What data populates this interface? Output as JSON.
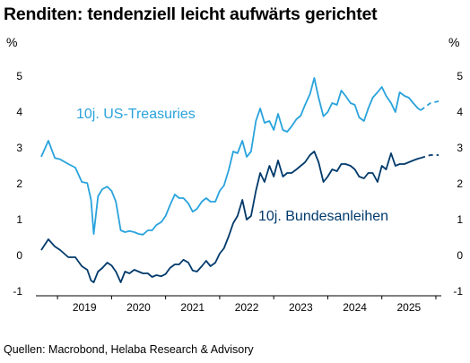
{
  "title": "Renditen: tendenziell leicht aufwärts gerichtet",
  "source": "Quellen: Macrobond, Helaba Research & Advisory",
  "chart_data": {
    "type": "line",
    "unit_left": "%",
    "unit_right": "%",
    "ylim": [
      -1,
      5
    ],
    "y_ticks": [
      "-1",
      "0",
      "1",
      "2",
      "3",
      "4",
      "5"
    ],
    "x_ticks": [
      "2019",
      "2020",
      "2021",
      "2022",
      "2023",
      "2024",
      "2025"
    ],
    "xlim": [
      2018.6,
      2026.1
    ],
    "series": [
      {
        "name": "10j. US-Treasuries",
        "color": "#29a3dc",
        "points": [
          [
            2018.7,
            2.75
          ],
          [
            2018.83,
            3.2
          ],
          [
            2018.95,
            2.72
          ],
          [
            2019.05,
            2.68
          ],
          [
            2019.2,
            2.55
          ],
          [
            2019.33,
            2.45
          ],
          [
            2019.45,
            2.05
          ],
          [
            2019.55,
            2.02
          ],
          [
            2019.62,
            1.55
          ],
          [
            2019.67,
            0.6
          ],
          [
            2019.75,
            1.65
          ],
          [
            2019.83,
            1.85
          ],
          [
            2019.92,
            1.92
          ],
          [
            2020.0,
            1.8
          ],
          [
            2020.08,
            1.5
          ],
          [
            2020.17,
            0.7
          ],
          [
            2020.25,
            0.65
          ],
          [
            2020.33,
            0.68
          ],
          [
            2020.42,
            0.65
          ],
          [
            2020.5,
            0.6
          ],
          [
            2020.58,
            0.58
          ],
          [
            2020.67,
            0.7
          ],
          [
            2020.75,
            0.7
          ],
          [
            2020.83,
            0.85
          ],
          [
            2020.92,
            0.93
          ],
          [
            2021.0,
            1.1
          ],
          [
            2021.08,
            1.4
          ],
          [
            2021.17,
            1.7
          ],
          [
            2021.25,
            1.6
          ],
          [
            2021.33,
            1.6
          ],
          [
            2021.42,
            1.45
          ],
          [
            2021.5,
            1.22
          ],
          [
            2021.58,
            1.3
          ],
          [
            2021.67,
            1.5
          ],
          [
            2021.75,
            1.6
          ],
          [
            2021.83,
            1.5
          ],
          [
            2021.92,
            1.5
          ],
          [
            2022.0,
            1.8
          ],
          [
            2022.08,
            1.95
          ],
          [
            2022.17,
            2.4
          ],
          [
            2022.25,
            2.9
          ],
          [
            2022.33,
            2.85
          ],
          [
            2022.42,
            3.2
          ],
          [
            2022.5,
            2.75
          ],
          [
            2022.58,
            2.9
          ],
          [
            2022.67,
            3.75
          ],
          [
            2022.75,
            4.1
          ],
          [
            2022.83,
            3.7
          ],
          [
            2022.92,
            3.75
          ],
          [
            2023.0,
            3.5
          ],
          [
            2023.08,
            3.95
          ],
          [
            2023.17,
            3.5
          ],
          [
            2023.25,
            3.45
          ],
          [
            2023.33,
            3.6
          ],
          [
            2023.42,
            3.8
          ],
          [
            2023.5,
            3.9
          ],
          [
            2023.58,
            4.2
          ],
          [
            2023.67,
            4.5
          ],
          [
            2023.75,
            4.95
          ],
          [
            2023.83,
            4.4
          ],
          [
            2023.92,
            3.88
          ],
          [
            2024.0,
            4.0
          ],
          [
            2024.08,
            4.25
          ],
          [
            2024.17,
            4.2
          ],
          [
            2024.25,
            4.6
          ],
          [
            2024.33,
            4.45
          ],
          [
            2024.42,
            4.25
          ],
          [
            2024.5,
            4.2
          ],
          [
            2024.58,
            3.85
          ],
          [
            2024.67,
            3.75
          ],
          [
            2024.75,
            4.1
          ],
          [
            2024.83,
            4.4
          ],
          [
            2024.92,
            4.55
          ],
          [
            2025.0,
            4.7
          ],
          [
            2025.08,
            4.45
          ],
          [
            2025.17,
            4.25
          ],
          [
            2025.25,
            4.0
          ],
          [
            2025.33,
            4.55
          ],
          [
            2025.42,
            4.45
          ],
          [
            2025.5,
            4.4
          ],
          [
            2025.58,
            4.25
          ],
          [
            2025.67,
            4.1
          ],
          [
            2025.72,
            4.05
          ]
        ]
      },
      {
        "name": "10j. Bundesanleihen",
        "color": "#003a6b",
        "points": [
          [
            2018.7,
            0.15
          ],
          [
            2018.83,
            0.45
          ],
          [
            2018.95,
            0.25
          ],
          [
            2019.05,
            0.15
          ],
          [
            2019.2,
            -0.05
          ],
          [
            2019.33,
            -0.05
          ],
          [
            2019.45,
            -0.3
          ],
          [
            2019.55,
            -0.4
          ],
          [
            2019.62,
            -0.7
          ],
          [
            2019.67,
            -0.75
          ],
          [
            2019.75,
            -0.45
          ],
          [
            2019.83,
            -0.35
          ],
          [
            2019.92,
            -0.2
          ],
          [
            2020.0,
            -0.28
          ],
          [
            2020.08,
            -0.45
          ],
          [
            2020.17,
            -0.75
          ],
          [
            2020.25,
            -0.45
          ],
          [
            2020.33,
            -0.5
          ],
          [
            2020.42,
            -0.4
          ],
          [
            2020.5,
            -0.45
          ],
          [
            2020.58,
            -0.5
          ],
          [
            2020.67,
            -0.5
          ],
          [
            2020.75,
            -0.6
          ],
          [
            2020.83,
            -0.55
          ],
          [
            2020.92,
            -0.58
          ],
          [
            2021.0,
            -0.52
          ],
          [
            2021.08,
            -0.35
          ],
          [
            2021.17,
            -0.25
          ],
          [
            2021.25,
            -0.25
          ],
          [
            2021.33,
            -0.12
          ],
          [
            2021.42,
            -0.2
          ],
          [
            2021.5,
            -0.42
          ],
          [
            2021.58,
            -0.45
          ],
          [
            2021.67,
            -0.3
          ],
          [
            2021.75,
            -0.15
          ],
          [
            2021.83,
            -0.3
          ],
          [
            2021.92,
            -0.2
          ],
          [
            2022.0,
            0.05
          ],
          [
            2022.08,
            0.2
          ],
          [
            2022.17,
            0.55
          ],
          [
            2022.25,
            0.9
          ],
          [
            2022.33,
            1.1
          ],
          [
            2022.42,
            1.55
          ],
          [
            2022.5,
            1.0
          ],
          [
            2022.58,
            1.1
          ],
          [
            2022.67,
            1.8
          ],
          [
            2022.75,
            2.3
          ],
          [
            2022.83,
            2.05
          ],
          [
            2022.92,
            2.5
          ],
          [
            2023.0,
            2.2
          ],
          [
            2023.08,
            2.65
          ],
          [
            2023.17,
            2.2
          ],
          [
            2023.25,
            2.3
          ],
          [
            2023.33,
            2.3
          ],
          [
            2023.42,
            2.4
          ],
          [
            2023.5,
            2.5
          ],
          [
            2023.58,
            2.6
          ],
          [
            2023.67,
            2.8
          ],
          [
            2023.75,
            2.9
          ],
          [
            2023.83,
            2.6
          ],
          [
            2023.92,
            2.05
          ],
          [
            2024.0,
            2.2
          ],
          [
            2024.08,
            2.4
          ],
          [
            2024.17,
            2.35
          ],
          [
            2024.25,
            2.55
          ],
          [
            2024.33,
            2.55
          ],
          [
            2024.42,
            2.5
          ],
          [
            2024.5,
            2.4
          ],
          [
            2024.58,
            2.2
          ],
          [
            2024.67,
            2.15
          ],
          [
            2024.75,
            2.3
          ],
          [
            2024.83,
            2.3
          ],
          [
            2024.92,
            2.05
          ],
          [
            2025.0,
            2.5
          ],
          [
            2025.08,
            2.4
          ],
          [
            2025.17,
            2.85
          ],
          [
            2025.25,
            2.5
          ],
          [
            2025.33,
            2.55
          ],
          [
            2025.42,
            2.55
          ],
          [
            2025.5,
            2.6
          ],
          [
            2025.58,
            2.65
          ],
          [
            2025.67,
            2.7
          ],
          [
            2025.72,
            2.72
          ]
        ]
      }
    ],
    "forecast": [
      {
        "series": "10j. US-Treasuries",
        "color": "#29a3dc",
        "points": [
          [
            2025.72,
            4.05
          ],
          [
            2025.9,
            4.25
          ],
          [
            2026.05,
            4.3
          ]
        ]
      },
      {
        "series": "10j. Bundesanleihen",
        "color": "#003a6b",
        "points": [
          [
            2025.72,
            2.72
          ],
          [
            2025.9,
            2.8
          ],
          [
            2026.05,
            2.8
          ]
        ]
      }
    ],
    "grid": false,
    "legend": "inline labels"
  }
}
